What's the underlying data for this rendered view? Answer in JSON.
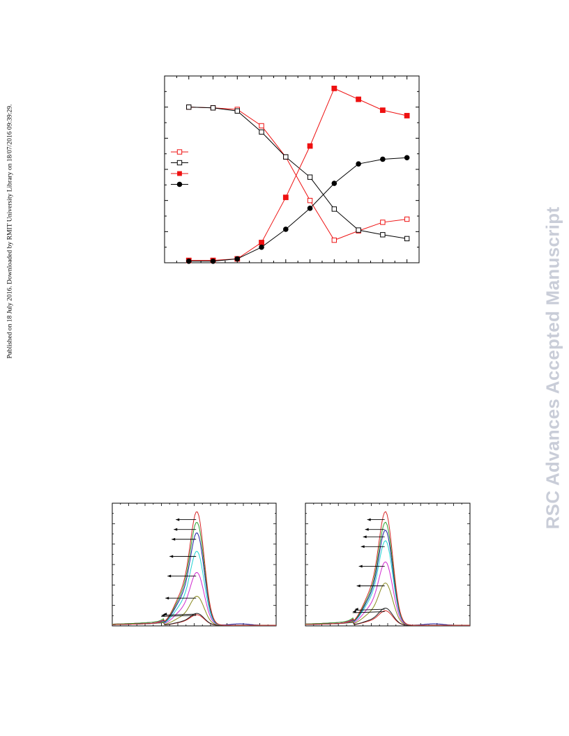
{
  "side_note": "Published on 18 July 2016. Downloaded by RMIT University Library on 18/07/2016 09:39:29.",
  "watermark": "RSC Advances Accepted Manuscript",
  "colors": {
    "red": "#ee1111",
    "black": "#000000"
  },
  "chart_data": [
    {
      "type": "line",
      "title": "",
      "xlabel": "",
      "ylabel": "",
      "xlim": [
        0,
        10.5
      ],
      "ylim": [
        0,
        12
      ],
      "x": [
        1,
        2,
        3,
        4,
        5,
        6,
        7,
        8,
        9,
        10
      ],
      "legend_position": "left-middle",
      "grid": false,
      "series": [
        {
          "style": "open-square",
          "color": "#ee1111",
          "values": [
            10.0,
            9.95,
            9.85,
            8.8,
            6.8,
            4.0,
            1.45,
            2.05,
            2.6,
            2.8
          ]
        },
        {
          "style": "open-square",
          "color": "#000000",
          "values": [
            10.0,
            9.95,
            9.75,
            8.4,
            6.8,
            5.5,
            3.45,
            2.1,
            1.8,
            1.55
          ]
        },
        {
          "style": "filled-square",
          "color": "#ee1111",
          "values": [
            0.15,
            0.15,
            0.25,
            1.3,
            4.2,
            7.5,
            11.2,
            10.5,
            9.8,
            9.45
          ]
        },
        {
          "style": "filled-circle",
          "color": "#000000",
          "values": [
            0.1,
            0.1,
            0.25,
            1.0,
            2.15,
            3.5,
            5.1,
            6.35,
            6.65,
            6.75
          ]
        }
      ]
    },
    {
      "type": "line",
      "title": "",
      "xlabel": "",
      "ylabel": "",
      "xlim": [
        0,
        100
      ],
      "ylim": [
        0,
        100
      ],
      "grid": false,
      "peak_center": 52,
      "peak_heights": [
        8,
        9,
        22,
        40,
        56,
        70,
        78,
        86
      ],
      "series_colors": [
        "#d62828",
        "#202020",
        "#8a8a1f",
        "#d02bd0",
        "#1fd2d2",
        "#1a1aa0",
        "#2ca02c",
        "#d62828"
      ]
    },
    {
      "type": "line",
      "title": "",
      "xlabel": "",
      "ylabel": "",
      "xlim": [
        0,
        100
      ],
      "ylim": [
        0,
        100
      ],
      "grid": false,
      "peak_center": 49,
      "peak_heights": [
        11,
        13,
        32,
        48,
        64,
        72,
        78,
        86
      ],
      "series_colors": [
        "#d62828",
        "#202020",
        "#8a8a1f",
        "#d02bd0",
        "#1fd2d2",
        "#1a1aa0",
        "#2ca02c",
        "#d62828"
      ]
    }
  ]
}
